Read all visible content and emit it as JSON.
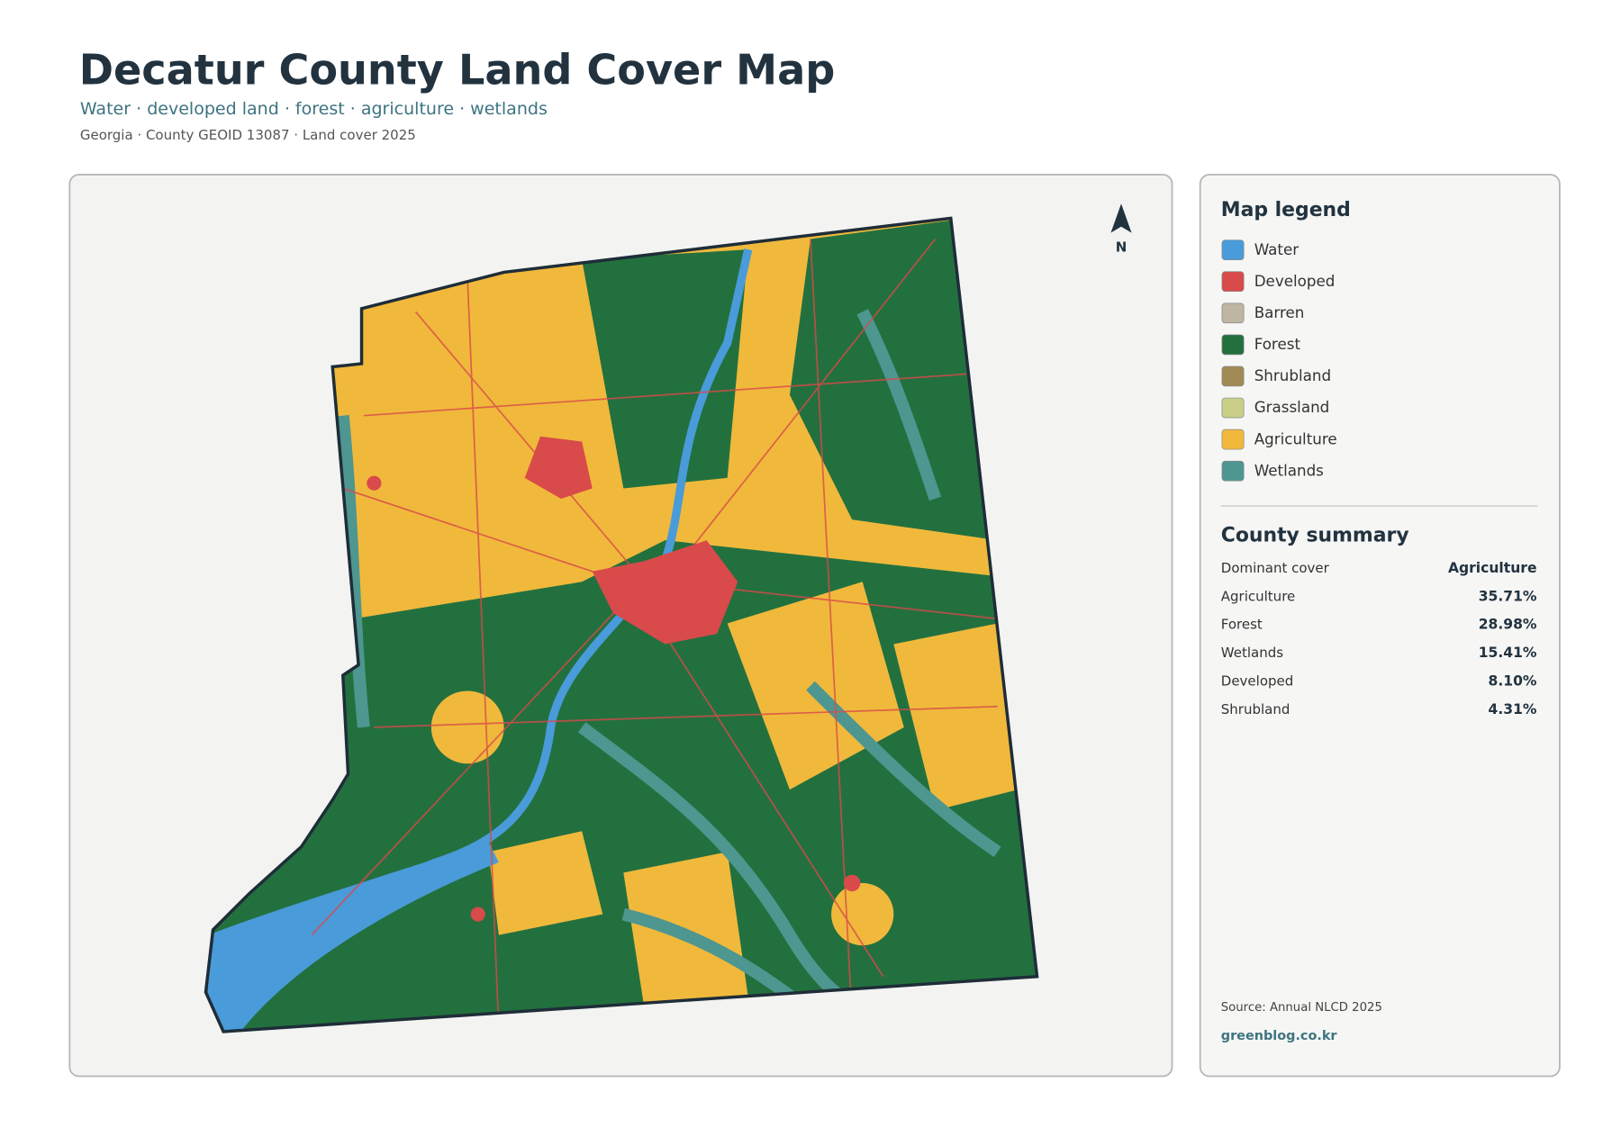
{
  "header": {
    "title": "Decatur County Land Cover Map",
    "subtitle": "Water · developed land · forest · agriculture · wetlands",
    "meta": "Georgia · County GEOID 13087 · Land cover 2025"
  },
  "map": {
    "north_label": "N"
  },
  "legend": {
    "title": "Map legend",
    "items": [
      {
        "label": "Water",
        "color": "#4a9bd9"
      },
      {
        "label": "Developed",
        "color": "#d94a4a"
      },
      {
        "label": "Barren",
        "color": "#bfb5a3"
      },
      {
        "label": "Forest",
        "color": "#23703f"
      },
      {
        "label": "Shrubland",
        "color": "#a08a55"
      },
      {
        "label": "Grassland",
        "color": "#c9cf86"
      },
      {
        "label": "Agriculture",
        "color": "#f0b93c"
      },
      {
        "label": "Wetlands",
        "color": "#4e9690"
      }
    ]
  },
  "summary": {
    "title": "County summary",
    "rows": [
      [
        "Dominant cover",
        "Agriculture"
      ],
      [
        "Agriculture",
        "35.71%"
      ],
      [
        "Forest",
        "28.98%"
      ],
      [
        "Wetlands",
        "15.41%"
      ],
      [
        "Developed",
        "8.10%"
      ],
      [
        "Shrubland",
        "4.31%"
      ]
    ]
  },
  "footer": {
    "source": "Source: Annual NLCD 2025",
    "site": "greenblog.co.kr"
  }
}
